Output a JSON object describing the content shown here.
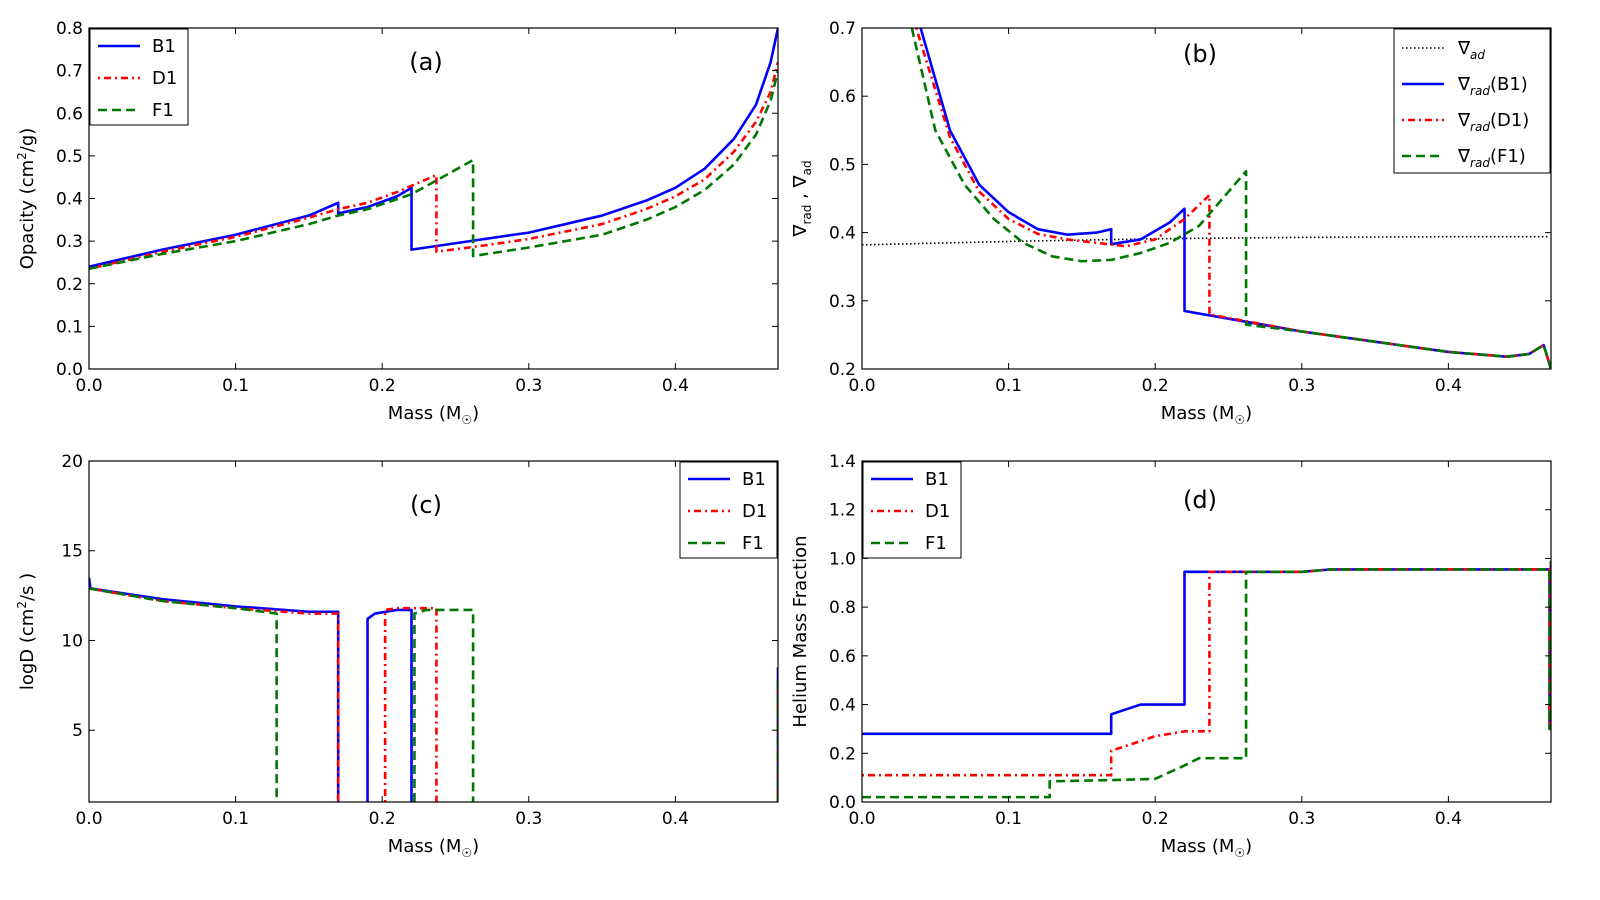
{
  "styles": {
    "B1": {
      "color": "#0000ff",
      "dash": "",
      "width": 2.6
    },
    "D1": {
      "color": "#ff0000",
      "dash": "2,4,7,4",
      "width": 2.6
    },
    "F1": {
      "color": "#007700",
      "dash": "9,5",
      "width": 2.6
    },
    "ad": {
      "color": "#000000",
      "dash": "1.5,2.5",
      "width": 1.6
    }
  },
  "chart_data": [
    {
      "id": "a",
      "type": "line",
      "panel_label": "(a)",
      "xlabel": "Mass (M",
      "xlabel_sub": "☉",
      "xlabel_close": ")",
      "ylabel": "Opacity (cm",
      "ylabel_sup": "2",
      "ylabel_close": "/g)",
      "xlim": [
        0,
        0.47
      ],
      "ylim": [
        0,
        0.8
      ],
      "xticks": [
        0.0,
        0.1,
        0.2,
        0.3,
        0.4
      ],
      "xtick_labels": [
        "0.0",
        "0.1",
        "0.2",
        "0.3",
        "0.4"
      ],
      "yticks": [
        0.0,
        0.1,
        0.2,
        0.3,
        0.4,
        0.5,
        0.6,
        0.7,
        0.8
      ],
      "ytick_labels": [
        "0.0",
        "0.1",
        "0.2",
        "0.3",
        "0.4",
        "0.5",
        "0.6",
        "0.7",
        "0.8"
      ],
      "legend": [
        {
          "key": "B1",
          "label": "B1"
        },
        {
          "key": "D1",
          "label": "D1"
        },
        {
          "key": "F1",
          "label": "F1"
        }
      ],
      "series": [
        {
          "name": "B1",
          "x": [
            0,
            0.05,
            0.1,
            0.15,
            0.17,
            0.17,
            0.19,
            0.21,
            0.22,
            0.22,
            0.25,
            0.3,
            0.35,
            0.38,
            0.4,
            0.42,
            0.44,
            0.455,
            0.465,
            0.47
          ],
          "y": [
            0.24,
            0.28,
            0.315,
            0.36,
            0.39,
            0.365,
            0.38,
            0.405,
            0.425,
            0.28,
            0.295,
            0.32,
            0.36,
            0.395,
            0.425,
            0.47,
            0.54,
            0.62,
            0.72,
            0.8
          ]
        },
        {
          "name": "D1",
          "x": [
            0,
            0.05,
            0.1,
            0.15,
            0.17,
            0.19,
            0.21,
            0.237,
            0.237,
            0.27,
            0.3,
            0.35,
            0.38,
            0.4,
            0.42,
            0.44,
            0.455,
            0.465,
            0.47
          ],
          "y": [
            0.235,
            0.275,
            0.31,
            0.355,
            0.375,
            0.39,
            0.415,
            0.455,
            0.275,
            0.29,
            0.305,
            0.34,
            0.375,
            0.405,
            0.445,
            0.51,
            0.58,
            0.65,
            0.72
          ]
        },
        {
          "name": "F1",
          "x": [
            0,
            0.05,
            0.1,
            0.15,
            0.17,
            0.19,
            0.22,
            0.262,
            0.262,
            0.3,
            0.35,
            0.38,
            0.4,
            0.42,
            0.44,
            0.455,
            0.465,
            0.47
          ],
          "y": [
            0.235,
            0.27,
            0.3,
            0.34,
            0.36,
            0.375,
            0.41,
            0.49,
            0.265,
            0.285,
            0.315,
            0.35,
            0.38,
            0.42,
            0.48,
            0.55,
            0.63,
            0.7
          ]
        }
      ]
    },
    {
      "id": "b",
      "type": "line",
      "panel_label": "(b)",
      "xlabel": "Mass (M",
      "xlabel_sub": "☉",
      "xlabel_close": ")",
      "ylabel": "∇",
      "ylabel_sub1": "rad",
      "ylabel_mid": " , ∇",
      "ylabel_sub2": "ad",
      "xlim": [
        0,
        0.47
      ],
      "ylim": [
        0.2,
        0.7
      ],
      "xticks": [
        0.0,
        0.1,
        0.2,
        0.3,
        0.4
      ],
      "xtick_labels": [
        "0.0",
        "0.1",
        "0.2",
        "0.3",
        "0.4"
      ],
      "yticks": [
        0.2,
        0.3,
        0.4,
        0.5,
        0.6,
        0.7
      ],
      "ytick_labels": [
        "0.2",
        "0.3",
        "0.4",
        "0.5",
        "0.6",
        "0.7"
      ],
      "legend": [
        {
          "key": "ad",
          "label": "∇",
          "sub": "ad",
          "suffix": ""
        },
        {
          "key": "B1",
          "label": "∇",
          "sub": "rad",
          "suffix": "(B1)"
        },
        {
          "key": "D1",
          "label": "∇",
          "sub": "rad",
          "suffix": "(D1)"
        },
        {
          "key": "F1",
          "label": "∇",
          "sub": "rad",
          "suffix": "(F1)"
        }
      ],
      "series": [
        {
          "name": "ad",
          "x": [
            0,
            0.1,
            0.2,
            0.3,
            0.4,
            0.469
          ],
          "y": [
            0.382,
            0.387,
            0.391,
            0.393,
            0.394,
            0.394
          ]
        },
        {
          "name": "B1",
          "x": [
            0.04,
            0.06,
            0.08,
            0.1,
            0.12,
            0.14,
            0.16,
            0.17,
            0.17,
            0.19,
            0.21,
            0.22,
            0.22,
            0.3,
            0.4,
            0.44,
            0.455,
            0.465,
            0.47
          ],
          "y": [
            0.7,
            0.55,
            0.47,
            0.43,
            0.405,
            0.397,
            0.4,
            0.405,
            0.383,
            0.39,
            0.415,
            0.435,
            0.285,
            0.255,
            0.225,
            0.218,
            0.222,
            0.235,
            0.2
          ]
        },
        {
          "name": "D1",
          "x": [
            0.037,
            0.06,
            0.08,
            0.1,
            0.12,
            0.14,
            0.16,
            0.18,
            0.2,
            0.22,
            0.237,
            0.237,
            0.3,
            0.4,
            0.44,
            0.455,
            0.465,
            0.47
          ],
          "y": [
            0.7,
            0.54,
            0.46,
            0.42,
            0.398,
            0.39,
            0.385,
            0.38,
            0.39,
            0.42,
            0.455,
            0.28,
            0.255,
            0.225,
            0.218,
            0.222,
            0.235,
            0.2
          ]
        },
        {
          "name": "F1",
          "x": [
            0.034,
            0.05,
            0.07,
            0.09,
            0.11,
            0.13,
            0.15,
            0.17,
            0.19,
            0.21,
            0.23,
            0.25,
            0.262,
            0.262,
            0.3,
            0.4,
            0.44,
            0.455,
            0.465,
            0.47
          ],
          "y": [
            0.7,
            0.55,
            0.47,
            0.42,
            0.385,
            0.365,
            0.358,
            0.36,
            0.37,
            0.385,
            0.41,
            0.46,
            0.49,
            0.265,
            0.255,
            0.225,
            0.218,
            0.222,
            0.235,
            0.2
          ]
        }
      ]
    },
    {
      "id": "c",
      "type": "line",
      "panel_label": "(c)",
      "xlabel": "Mass (M",
      "xlabel_sub": "☉",
      "xlabel_close": ")",
      "ylabel": "logD (cm",
      "ylabel_sup": "2",
      "ylabel_close": "/s )",
      "xlim": [
        0,
        0.47
      ],
      "ylim": [
        1,
        20
      ],
      "xticks": [
        0.0,
        0.1,
        0.2,
        0.3,
        0.4
      ],
      "xtick_labels": [
        "0.0",
        "0.1",
        "0.2",
        "0.3",
        "0.4"
      ],
      "yticks": [
        5,
        10,
        15,
        20
      ],
      "ytick_labels": [
        "5",
        "10",
        "15",
        "20"
      ],
      "legend": [
        {
          "key": "B1",
          "label": "B1"
        },
        {
          "key": "D1",
          "label": "D1"
        },
        {
          "key": "F1",
          "label": "F1"
        }
      ],
      "series": [
        {
          "name": "B1",
          "x": [
            0,
            0.001,
            0.05,
            0.1,
            0.15,
            0.17,
            0.17,
            null,
            0.19,
            0.19,
            0.195,
            0.21,
            0.22,
            0.22,
            null,
            0.47,
            0.47
          ],
          "y": [
            13.5,
            12.9,
            12.3,
            11.9,
            11.6,
            11.6,
            1,
            null,
            1,
            11.2,
            11.5,
            11.7,
            11.7,
            1,
            null,
            1,
            8.5
          ]
        },
        {
          "name": "D1",
          "x": [
            0,
            0.05,
            0.1,
            0.15,
            0.17,
            0.17,
            null,
            0.202,
            0.202,
            0.21,
            0.237,
            0.237,
            null,
            0.47,
            0.47
          ],
          "y": [
            12.9,
            12.2,
            11.8,
            11.5,
            11.5,
            1,
            null,
            1,
            11.7,
            11.8,
            11.8,
            1,
            null,
            1,
            8.0
          ]
        },
        {
          "name": "F1",
          "x": [
            0,
            0.05,
            0.1,
            0.128,
            0.128,
            null,
            0.222,
            0.222,
            0.23,
            0.262,
            0.262,
            null,
            0.47,
            0.47
          ],
          "y": [
            12.9,
            12.2,
            11.8,
            11.5,
            1,
            null,
            1,
            11.5,
            11.7,
            11.7,
            1,
            null,
            1,
            8.0
          ]
        }
      ]
    },
    {
      "id": "d",
      "type": "line",
      "panel_label": "(d)",
      "xlabel": "Mass (M",
      "xlabel_sub": "☉",
      "xlabel_close": ")",
      "ylabel": "Helium Mass Fraction",
      "xlim": [
        0,
        0.47
      ],
      "ylim": [
        0,
        1.4
      ],
      "xticks": [
        0.0,
        0.1,
        0.2,
        0.3,
        0.4
      ],
      "xtick_labels": [
        "0.0",
        "0.1",
        "0.2",
        "0.3",
        "0.4"
      ],
      "yticks": [
        0.0,
        0.2,
        0.4,
        0.6,
        0.8,
        1.0,
        1.2,
        1.4
      ],
      "ytick_labels": [
        "0.0",
        "0.2",
        "0.4",
        "0.6",
        "0.8",
        "1.0",
        "1.2",
        "1.4"
      ],
      "legend": [
        {
          "key": "B1",
          "label": "B1"
        },
        {
          "key": "D1",
          "label": "D1"
        },
        {
          "key": "F1",
          "label": "F1"
        }
      ],
      "series": [
        {
          "name": "B1",
          "x": [
            0,
            0.17,
            0.17,
            0.18,
            0.19,
            0.22,
            0.22,
            0.3,
            0.32,
            0.469,
            0.469,
            0.47
          ],
          "y": [
            0.28,
            0.28,
            0.36,
            0.38,
            0.4,
            0.4,
            0.945,
            0.945,
            0.955,
            0.955,
            0.3,
            0.99
          ]
        },
        {
          "name": "D1",
          "x": [
            0,
            0.17,
            0.17,
            0.2,
            0.22,
            0.237,
            0.237,
            0.3,
            0.32,
            0.469,
            0.469,
            0.47
          ],
          "y": [
            0.11,
            0.11,
            0.21,
            0.27,
            0.29,
            0.29,
            0.945,
            0.945,
            0.955,
            0.955,
            0.3,
            0.99
          ]
        },
        {
          "name": "F1",
          "x": [
            0,
            0.128,
            0.128,
            0.17,
            0.2,
            0.22,
            0.23,
            0.262,
            0.262,
            0.3,
            0.32,
            0.469,
            0.469,
            0.47
          ],
          "y": [
            0.02,
            0.02,
            0.085,
            0.09,
            0.095,
            0.15,
            0.18,
            0.18,
            0.945,
            0.945,
            0.955,
            0.955,
            0.3,
            0.99
          ]
        }
      ]
    }
  ]
}
